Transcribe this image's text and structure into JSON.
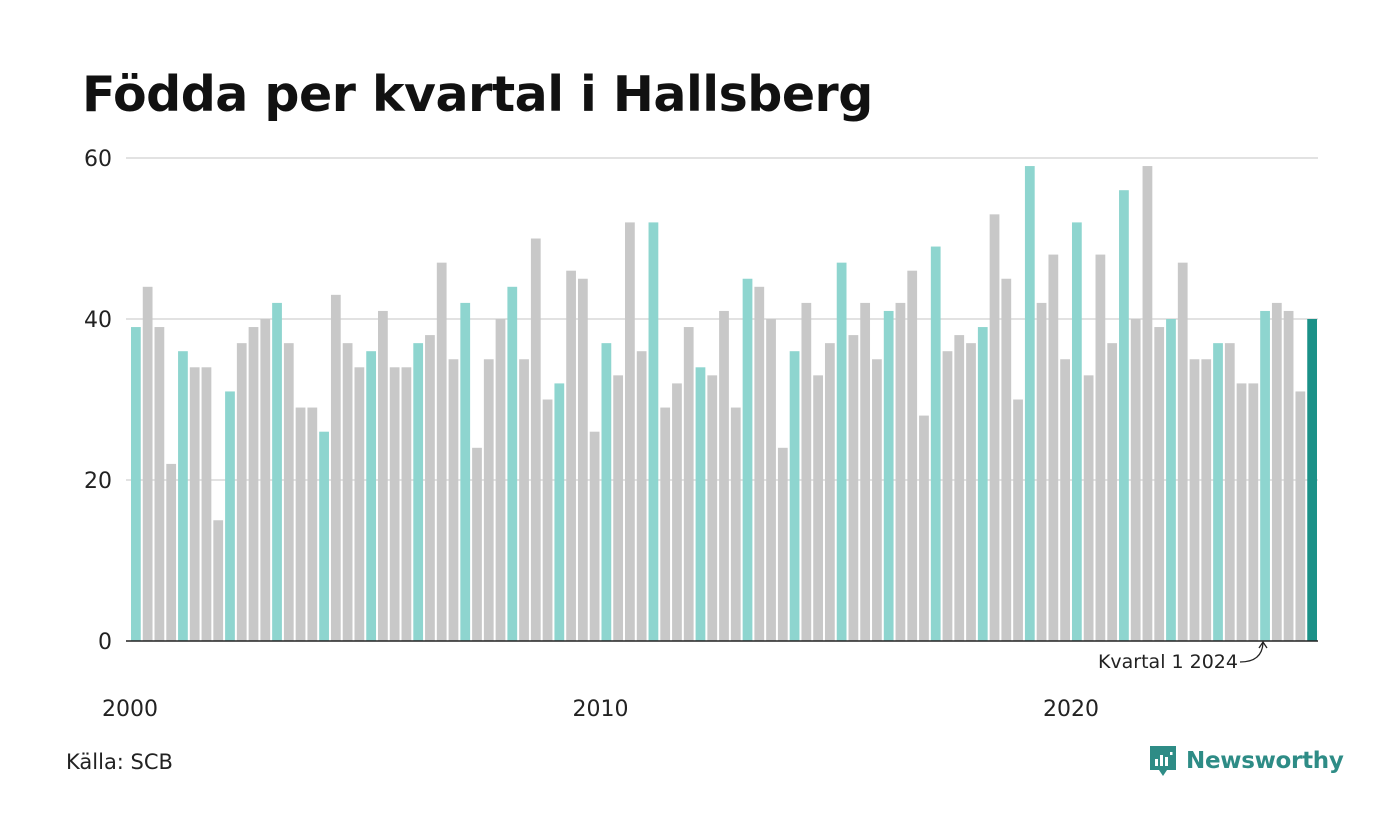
{
  "title": "Födda per kvartal i Hallsberg",
  "source": "Källa: SCB",
  "brand": {
    "name": "Newsworthy",
    "icon": "newsworthy-logo-icon"
  },
  "colors": {
    "q1": "#8ed5cf",
    "other": "#c8c8c8",
    "latest": "#1b9188",
    "grid": "#e2e2e2",
    "axis": "#222222",
    "brand": "#2e8c86"
  },
  "chart_data": {
    "type": "bar",
    "title": "Födda per kvartal i Hallsberg",
    "xlabel": "",
    "ylabel": "",
    "ylim": [
      0,
      60
    ],
    "yticks": [
      0,
      20,
      40,
      60
    ],
    "xticks": [
      "2000",
      "2010",
      "2020"
    ],
    "grid": true,
    "start_year": 2000,
    "values": [
      39,
      44,
      39,
      22,
      36,
      34,
      34,
      15,
      31,
      37,
      39,
      40,
      42,
      37,
      29,
      29,
      26,
      43,
      37,
      34,
      36,
      41,
      34,
      34,
      37,
      38,
      47,
      35,
      42,
      24,
      35,
      40,
      44,
      35,
      50,
      30,
      32,
      46,
      45,
      26,
      37,
      33,
      52,
      36,
      52,
      29,
      32,
      39,
      34,
      33,
      41,
      29,
      45,
      44,
      40,
      24,
      36,
      42,
      33,
      37,
      47,
      38,
      42,
      35,
      41,
      42,
      46,
      28,
      49,
      36,
      38,
      37,
      39,
      53,
      45,
      30,
      59,
      42,
      48,
      35,
      52,
      33,
      48,
      37,
      56,
      40,
      59,
      39,
      40,
      47,
      35,
      35,
      37,
      37,
      32,
      32,
      41,
      42,
      41,
      31,
      40
    ],
    "annotation": "Kvartal 1 2024"
  }
}
